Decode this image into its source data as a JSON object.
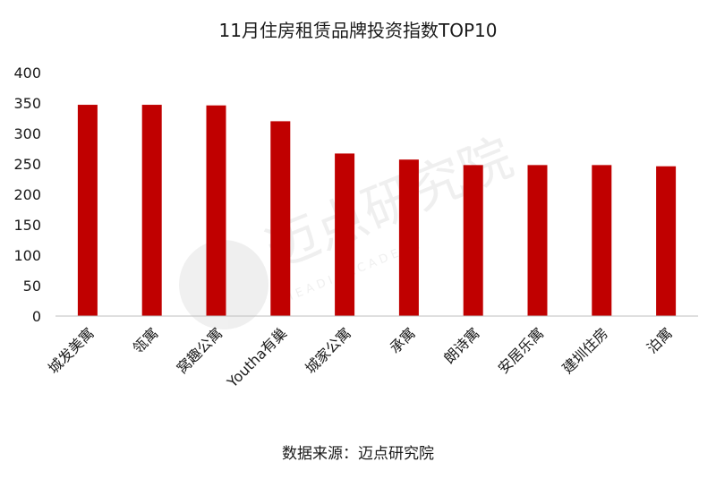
{
  "chart_data": {
    "type": "bar",
    "title": "11月住房租赁品牌投资指数TOP10",
    "categories": [
      "城发美寓",
      "瓴寓",
      "窝趣公寓",
      "Youtha有巢",
      "城家公寓",
      "承寓",
      "朗诗寓",
      "安居乐寓",
      "建圳住房",
      "泊寓"
    ],
    "values": [
      347,
      347,
      346,
      320,
      267,
      257,
      248,
      248,
      248,
      246
    ],
    "ylim": [
      0,
      400
    ],
    "yticks": [
      0,
      50,
      100,
      150,
      200,
      250,
      300,
      350,
      400
    ],
    "xlabel": "",
    "ylabel": "",
    "grid": false,
    "bar_color": "#c00000"
  },
  "source": "数据来源：迈点研究院",
  "watermark": {
    "text": "迈点研究院",
    "subtext": "M E A D I N   A C A D E M Y"
  }
}
